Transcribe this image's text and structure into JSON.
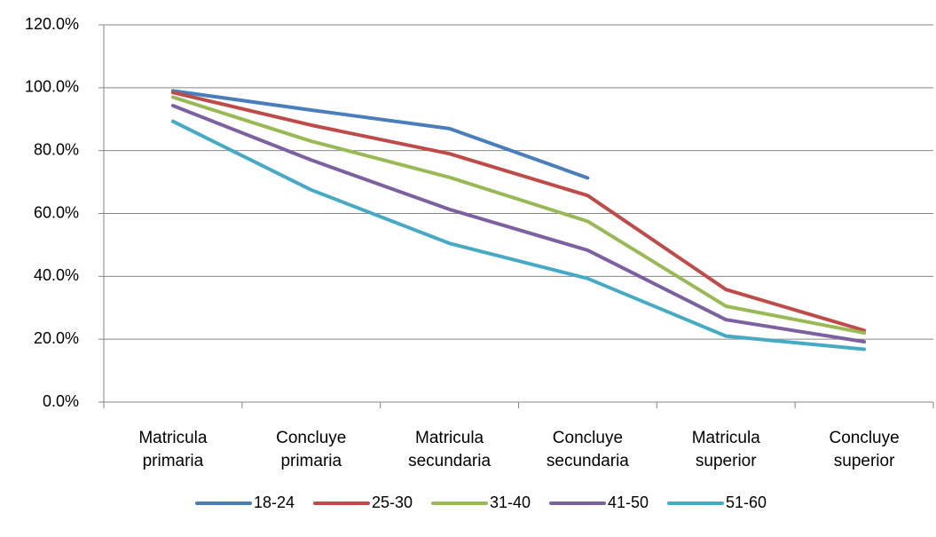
{
  "chart_data": {
    "type": "line",
    "categories": [
      "Matricula primaria",
      "Concluye primaria",
      "Matricula secundaria",
      "Concluye secundaria",
      "Matricula superior",
      "Concluye superior"
    ],
    "series": [
      {
        "name": "18-24",
        "color": "#4a7ebb",
        "values": [
          99.0,
          92.9,
          87.0,
          71.3,
          null,
          null
        ]
      },
      {
        "name": "25-30",
        "color": "#be4b48",
        "values": [
          98.5,
          88.1,
          79.0,
          65.7,
          35.8,
          22.8
        ]
      },
      {
        "name": "31-40",
        "color": "#98b954",
        "values": [
          97.0,
          83.0,
          71.5,
          57.5,
          30.5,
          22.0
        ]
      },
      {
        "name": "41-50",
        "color": "#7d60a0",
        "values": [
          94.3,
          77.0,
          61.3,
          48.3,
          26.2,
          19.2
        ]
      },
      {
        "name": "51-60",
        "color": "#46aac5",
        "values": [
          89.3,
          67.5,
          50.5,
          39.3,
          21.0,
          16.8
        ]
      }
    ],
    "ylim": [
      0,
      120
    ],
    "yticks": [
      {
        "value": 0,
        "label": "0.0%"
      },
      {
        "value": 20,
        "label": "20.0%"
      },
      {
        "value": 40,
        "label": "40.0%"
      },
      {
        "value": 60,
        "label": "60.0%"
      },
      {
        "value": 80,
        "label": "80.0%"
      },
      {
        "value": 100,
        "label": "100.0%"
      },
      {
        "value": 120,
        "label": "120.0%"
      }
    ],
    "grid": true,
    "legend": "bottom"
  }
}
